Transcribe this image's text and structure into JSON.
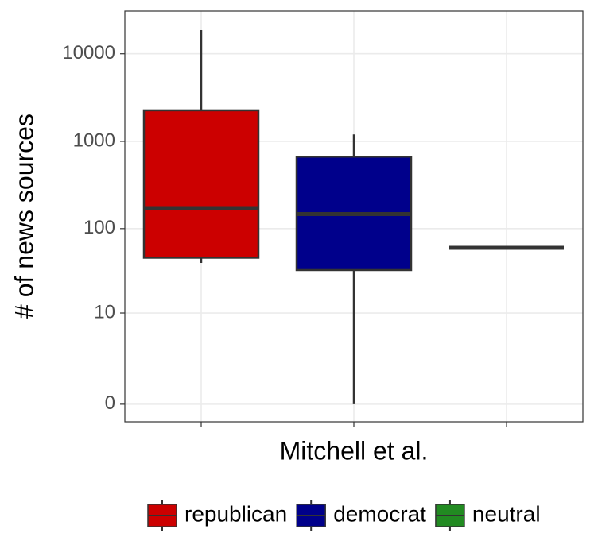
{
  "chart_data": {
    "type": "box",
    "x_label": "Mitchell et al.",
    "y_label": "# of news sources",
    "y_scale": "log1p",
    "ylim": [
      -0.37,
      30700
    ],
    "yticks": [
      0,
      10,
      100,
      1000,
      10000
    ],
    "grid": true,
    "legend_position": "bottom",
    "series": [
      {
        "name": "republican",
        "color": "#cc0000",
        "whisker_low": 40,
        "q1": 46,
        "median": 172,
        "q3": 2260,
        "whisker_high": 18600
      },
      {
        "name": "democrat",
        "color": "#00008b",
        "whisker_low": 0,
        "q1": 33,
        "median": 147,
        "q3": 668,
        "whisker_high": 1200
      },
      {
        "name": "neutral",
        "color": "#228b22",
        "whisker_low": 60,
        "q1": 60,
        "median": 60,
        "q3": 60,
        "whisker_high": 60
      }
    ]
  }
}
